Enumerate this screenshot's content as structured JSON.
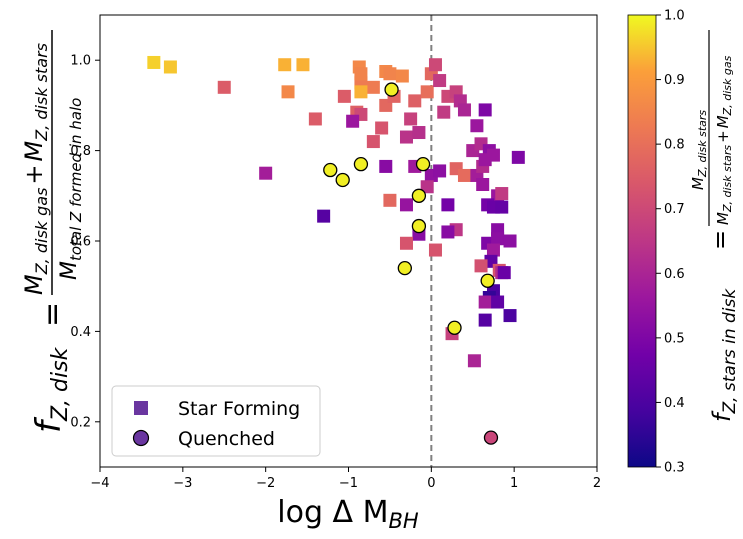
{
  "chart_data": {
    "type": "scatter",
    "xlabel": "log Δ M",
    "xlabel_sub": "BH",
    "xlim": [
      -4,
      2
    ],
    "ylim": [
      0.1,
      1.1
    ],
    "xticks": [
      -4,
      -3,
      -2,
      -1,
      0,
      1,
      2
    ],
    "yticks": [
      0.2,
      0.4,
      0.6,
      0.8,
      1.0
    ],
    "xtick_labels": [
      "−4",
      "−3",
      "−2",
      "−1",
      "0",
      "1",
      "2"
    ],
    "ytick_labels": [
      "0.2",
      "0.4",
      "0.6",
      "0.8",
      "1.0"
    ],
    "ylabel": {
      "lhs_main": "f",
      "lhs_sub": "Z, disk",
      "eq": "=",
      "num_m1": "M",
      "num_sub1": "Z, disk gas",
      "num_plus": "+",
      "num_m2": "M",
      "num_sub2": "Z, disk stars",
      "den_m": "M",
      "den_sub": "total Z formed in halo"
    },
    "vline": {
      "x": 0,
      "style": "dashed",
      "color": "#808080"
    },
    "colorbar": {
      "colormap": "plasma",
      "range": [
        0.3,
        1.0
      ],
      "ticks": [
        0.3,
        0.4,
        0.5,
        0.6,
        0.7,
        0.8,
        0.9,
        1.0
      ],
      "tick_labels": [
        "0.3",
        "0.4",
        "0.5",
        "0.6",
        "0.7",
        "0.8",
        "0.9",
        "1.0"
      ],
      "label": {
        "lhs_main": "f",
        "lhs_sub": "Z, stars in disk",
        "eq": "=",
        "num_m": "M",
        "num_sub": "Z, disk stars",
        "den_m1": "M",
        "den_sub1": "Z, disk stars",
        "den_plus": "+",
        "den_m2": "M",
        "den_sub2": "Z, disk gas"
      }
    },
    "legend": {
      "placement": "lower-left",
      "entries": [
        {
          "label": "Star Forming",
          "marker": "square",
          "color": "#6a36a0"
        },
        {
          "label": "Quenched",
          "marker": "circle",
          "color": "#6a36a0"
        }
      ]
    },
    "series": [
      {
        "name": "Star Forming",
        "marker": "square",
        "points": [
          [
            -3.35,
            0.995,
            0.96
          ],
          [
            -3.15,
            0.985,
            0.95
          ],
          [
            -2.5,
            0.94,
            0.75
          ],
          [
            -1.77,
            0.99,
            0.93
          ],
          [
            -1.55,
            0.99,
            0.93
          ],
          [
            -1.73,
            0.93,
            0.86
          ],
          [
            -1.4,
            0.87,
            0.75
          ],
          [
            -1.05,
            0.92,
            0.75
          ],
          [
            -0.85,
            0.95,
            0.83
          ],
          [
            -0.87,
            0.985,
            0.86
          ],
          [
            -0.85,
            0.97,
            0.85
          ],
          [
            -0.7,
            0.94,
            0.83
          ],
          [
            -0.55,
            0.975,
            0.86
          ],
          [
            -0.5,
            0.97,
            0.85
          ],
          [
            -0.35,
            0.965,
            0.86
          ],
          [
            -0.9,
            0.885,
            0.76
          ],
          [
            -0.85,
            0.88,
            0.7
          ],
          [
            -0.7,
            0.82,
            0.73
          ],
          [
            -0.6,
            0.85,
            0.73
          ],
          [
            -0.55,
            0.9,
            0.78
          ],
          [
            -0.45,
            0.92,
            0.77
          ],
          [
            -0.2,
            0.91,
            0.76
          ],
          [
            -0.3,
            0.83,
            0.64
          ],
          [
            -0.15,
            0.84,
            0.63
          ],
          [
            -0.25,
            0.87,
            0.68
          ],
          [
            -0.05,
            0.93,
            0.8
          ],
          [
            0.0,
            0.97,
            0.78
          ],
          [
            0.05,
            0.99,
            0.7
          ],
          [
            0.1,
            0.955,
            0.66
          ],
          [
            0.2,
            0.92,
            0.7
          ],
          [
            0.3,
            0.93,
            0.68
          ],
          [
            0.35,
            0.91,
            0.62
          ],
          [
            0.15,
            0.885,
            0.66
          ],
          [
            0.4,
            0.89,
            0.6
          ],
          [
            0.55,
            0.855,
            0.56
          ],
          [
            0.65,
            0.89,
            0.5
          ],
          [
            0.5,
            0.8,
            0.6
          ],
          [
            0.6,
            0.815,
            0.62
          ],
          [
            0.7,
            0.8,
            0.53
          ],
          [
            0.75,
            0.79,
            0.56
          ],
          [
            1.05,
            0.785,
            0.5
          ],
          [
            -0.95,
            0.865,
            0.56
          ],
          [
            -0.55,
            0.765,
            0.52
          ],
          [
            -0.2,
            0.765,
            0.57
          ],
          [
            0.0,
            0.745,
            0.54
          ],
          [
            0.1,
            0.755,
            0.53
          ],
          [
            0.3,
            0.76,
            0.77
          ],
          [
            0.4,
            0.745,
            0.79
          ],
          [
            0.55,
            0.745,
            0.58
          ],
          [
            0.62,
            0.765,
            0.62
          ],
          [
            0.65,
            0.78,
            0.56
          ],
          [
            0.62,
            0.725,
            0.56
          ],
          [
            0.8,
            0.7,
            0.56
          ],
          [
            0.85,
            0.705,
            0.66
          ],
          [
            0.68,
            0.68,
            0.48
          ],
          [
            0.75,
            0.675,
            0.46
          ],
          [
            0.85,
            0.675,
            0.45
          ],
          [
            -0.05,
            0.72,
            0.64
          ],
          [
            -0.3,
            0.68,
            0.55
          ],
          [
            -0.5,
            0.69,
            0.78
          ],
          [
            -2.0,
            0.75,
            0.58
          ],
          [
            -1.3,
            0.655,
            0.42
          ],
          [
            0.2,
            0.68,
            0.48
          ],
          [
            -0.15,
            0.615,
            0.52
          ],
          [
            0.3,
            0.625,
            0.65
          ],
          [
            0.2,
            0.62,
            0.52
          ],
          [
            -0.3,
            0.595,
            0.73
          ],
          [
            0.05,
            0.58,
            0.73
          ],
          [
            0.68,
            0.595,
            0.5
          ],
          [
            0.8,
            0.625,
            0.52
          ],
          [
            0.8,
            0.605,
            0.53
          ],
          [
            0.95,
            0.6,
            0.53
          ],
          [
            0.75,
            0.58,
            0.57
          ],
          [
            0.72,
            0.555,
            0.44
          ],
          [
            0.6,
            0.545,
            0.72
          ],
          [
            0.82,
            0.535,
            0.73
          ],
          [
            0.85,
            0.53,
            0.62
          ],
          [
            0.88,
            0.53,
            0.46
          ],
          [
            0.75,
            0.49,
            0.4
          ],
          [
            0.7,
            0.475,
            0.36
          ],
          [
            0.65,
            0.465,
            0.58
          ],
          [
            0.8,
            0.465,
            0.44
          ],
          [
            0.65,
            0.425,
            0.42
          ],
          [
            0.95,
            0.435,
            0.4
          ],
          [
            0.25,
            0.395,
            0.68
          ],
          [
            0.52,
            0.335,
            0.6
          ],
          [
            -0.85,
            0.93,
            0.93
          ]
        ]
      },
      {
        "name": "Quenched",
        "marker": "circle",
        "points": [
          [
            -0.48,
            0.935,
            0.99
          ],
          [
            -0.85,
            0.77,
            0.99
          ],
          [
            -1.22,
            0.757,
            0.99
          ],
          [
            -1.07,
            0.735,
            0.99
          ],
          [
            -0.1,
            0.77,
            0.99
          ],
          [
            -0.15,
            0.7,
            0.99
          ],
          [
            -0.15,
            0.633,
            0.99
          ],
          [
            -0.32,
            0.54,
            0.99
          ],
          [
            0.68,
            0.512,
            0.99
          ],
          [
            0.28,
            0.408,
            0.99
          ],
          [
            0.72,
            0.165,
            0.69
          ]
        ]
      }
    ]
  }
}
